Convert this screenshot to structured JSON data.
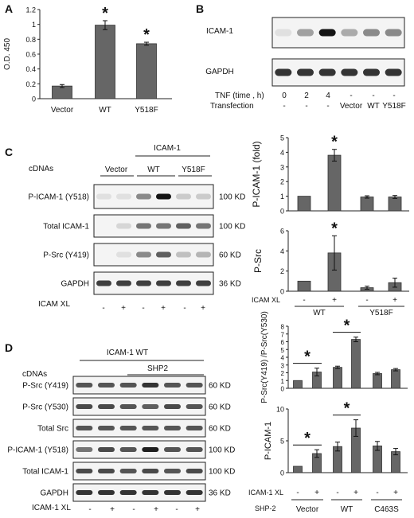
{
  "panels": {
    "A": {
      "letter": "A",
      "ylabel": "O.D. 450",
      "categories": [
        "Vector",
        "WT",
        "Y518F"
      ],
      "ticks": [
        "0",
        "0.2",
        "0.4",
        "0.6",
        "0.8",
        "1",
        "1.2"
      ],
      "asterisk": "*"
    },
    "B": {
      "letter": "B",
      "blots": [
        "ICAM-1",
        "GAPDH"
      ],
      "row_tnf_label": "TNF (time , h)",
      "row_tnf_values": [
        "0",
        "2",
        "4",
        "-",
        "-",
        "-"
      ],
      "row_trans_label": "Transfection",
      "row_trans_values": [
        "-",
        "-",
        "-",
        "Vector",
        "WT",
        "Y518F"
      ]
    },
    "C": {
      "letter": "C",
      "cdnas": "cDNAs",
      "group_header": "ICAM-1",
      "groups": [
        "Vector",
        "WT",
        "Y518F"
      ],
      "blots": [
        {
          "name": "P-ICAM-1 (Y518)",
          "kd": "100 KD"
        },
        {
          "name": "Total ICAM-1",
          "kd": "100 KD"
        },
        {
          "name": "P-Src  (Y419)",
          "kd": "60 KD"
        },
        {
          "name": "GAPDH",
          "kd": "36 KD"
        }
      ],
      "xl_label": "ICAM XL",
      "xl_values": [
        "-",
        "+",
        "-",
        "+",
        "-",
        "+"
      ],
      "chart1_ylabel": "P-ICAM-1 (fold)",
      "chart1_ticks": [
        "0",
        "1",
        "2",
        "3",
        "4",
        "5"
      ],
      "chart2_ylabel": "P-Src",
      "chart2_ticks": [
        "0",
        "2",
        "4",
        "6"
      ],
      "xl_row_label": "ICAM XL",
      "xl_row_values": [
        "-",
        "+",
        "-",
        "+"
      ],
      "group_labels": [
        "WT",
        "Y518F"
      ],
      "asterisk": "*"
    },
    "D": {
      "letter": "D",
      "header": "ICAM-1 WT",
      "cdnas": "cDNAs",
      "shp2": "SHP2",
      "groups": [
        "Vector",
        "WT",
        "C463S"
      ],
      "blots": [
        {
          "name": "P-Src  (Y419)",
          "kd": "60 KD"
        },
        {
          "name": "P-Src (Y530)",
          "kd": "60 KD"
        },
        {
          "name": "Total Src",
          "kd": "60 KD"
        },
        {
          "name": "P-ICAM-1 (Y518)",
          "kd": "100 KD"
        },
        {
          "name": "Total ICAM-1",
          "kd": "100 KD"
        },
        {
          "name": "GAPDH",
          "kd": "36 KD"
        }
      ],
      "xl_label": "ICAM-1 XL",
      "xl_values": [
        "-",
        "+",
        "-",
        "+",
        "-",
        "+"
      ],
      "chart1_ylabel": "P-Src(Y419) /P-Src(Y530)",
      "chart1_ticks": [
        "0",
        "1",
        "2",
        "3",
        "4",
        "5",
        "6",
        "7",
        "8"
      ],
      "chart2_ylabel": "P-ICAM-1",
      "chart2_ticks": [
        "0",
        "5",
        "10"
      ],
      "xl_row_label": "ICAM-1 XL",
      "xl_row_values": [
        "-",
        "+",
        "-",
        "+",
        "-",
        "+"
      ],
      "shp_row_label": "SHP-2",
      "shp_groups": [
        "Vector",
        "WT",
        "C463S"
      ],
      "asterisk": "*"
    }
  },
  "chart_data": [
    {
      "type": "bar",
      "panel": "A",
      "categories": [
        "Vector",
        "WT",
        "Y518F"
      ],
      "values": [
        0.17,
        0.99,
        0.74
      ],
      "errors": [
        0.02,
        0.06,
        0.02
      ],
      "ylabel": "O.D. 450",
      "ylim": [
        0,
        1.2
      ],
      "significant": [
        false,
        true,
        true
      ]
    },
    {
      "type": "bar",
      "panel": "C-top",
      "categories": [
        "-",
        "+",
        "-",
        "+"
      ],
      "groups": [
        "WT",
        "Y518F"
      ],
      "values": [
        1.0,
        3.8,
        0.95,
        0.95
      ],
      "errors": [
        0,
        0.4,
        0.08,
        0.1
      ],
      "ylabel": "P-ICAM-1 (fold)",
      "ylim": [
        0,
        5
      ],
      "significant": [
        false,
        true,
        false,
        false
      ]
    },
    {
      "type": "bar",
      "panel": "C-bottom",
      "categories": [
        "-",
        "+",
        "-",
        "+"
      ],
      "groups": [
        "WT",
        "Y518F"
      ],
      "values": [
        1.0,
        3.8,
        0.35,
        0.85
      ],
      "errors": [
        0,
        1.7,
        0.15,
        0.45
      ],
      "ylabel": "P-Src",
      "ylim": [
        0,
        6
      ],
      "significant": [
        false,
        true,
        false,
        false
      ]
    },
    {
      "type": "bar",
      "panel": "D-top",
      "categories": [
        "-",
        "+",
        "-",
        "+",
        "-",
        "+"
      ],
      "groups": [
        "Vector",
        "WT",
        "C463S"
      ],
      "values": [
        1.0,
        2.1,
        2.7,
        6.3,
        1.9,
        2.4
      ],
      "errors": [
        0,
        0.5,
        0.15,
        0.3,
        0.15,
        0.15
      ],
      "ylabel": "P-Src(Y419) /P-Src(Y530)",
      "ylim": [
        0,
        8
      ],
      "significance_pairs": [
        [
          0,
          1
        ],
        [
          2,
          3
        ]
      ]
    },
    {
      "type": "bar",
      "panel": "D-bottom",
      "categories": [
        "-",
        "+",
        "-",
        "+",
        "-",
        "+"
      ],
      "groups": [
        "Vector",
        "WT",
        "C463S"
      ],
      "values": [
        1.0,
        3.0,
        4.1,
        7.0,
        4.2,
        3.3
      ],
      "errors": [
        0,
        0.6,
        0.7,
        1.3,
        0.7,
        0.5
      ],
      "ylabel": "P-ICAM-1",
      "ylim": [
        0,
        10
      ],
      "significance_pairs": [
        [
          0,
          1
        ],
        [
          2,
          3
        ]
      ]
    }
  ]
}
